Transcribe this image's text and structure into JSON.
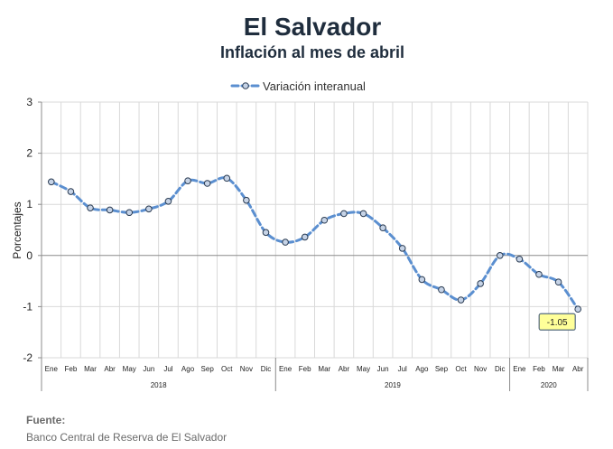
{
  "chart_data": {
    "type": "line",
    "title": "El Salvador",
    "subtitle": "Inflación al mes de abril",
    "ylabel": "Porcentajes",
    "xlabel": "",
    "ylim": [
      -2,
      3
    ],
    "yticks": [
      -2,
      -1,
      0,
      1,
      2,
      3
    ],
    "grid": true,
    "legend_position": "top-center",
    "categories": [
      "Ene",
      "Feb",
      "Mar",
      "Abr",
      "May",
      "Jun",
      "Jul",
      "Ago",
      "Sep",
      "Oct",
      "Nov",
      "Dic",
      "Ene",
      "Feb",
      "Mar",
      "Abr",
      "May",
      "Jun",
      "Jul",
      "Ago",
      "Sep",
      "Oct",
      "Nov",
      "Dic",
      "Ene",
      "Feb",
      "Mar",
      "Abr"
    ],
    "years": [
      {
        "label": "2018",
        "start": 0,
        "end": 11
      },
      {
        "label": "2019",
        "start": 12,
        "end": 23
      },
      {
        "label": "2020",
        "start": 24,
        "end": 27
      }
    ],
    "series": [
      {
        "name": "Variación interanual",
        "color": "#5b8fd0",
        "values": [
          1.44,
          1.25,
          0.93,
          0.89,
          0.84,
          0.91,
          1.06,
          1.46,
          1.41,
          1.51,
          1.08,
          0.45,
          0.26,
          0.36,
          0.69,
          0.82,
          0.82,
          0.54,
          0.14,
          -0.47,
          -0.67,
          -0.87,
          -0.55,
          0.0,
          -0.07,
          -0.37,
          -0.52,
          -1.05
        ]
      }
    ],
    "annotations": [
      {
        "label": "-1.05",
        "index": 27,
        "value": -1.05
      }
    ]
  },
  "source": {
    "label": "Fuente:",
    "text": "Banco Central de Reserva de El Salvador"
  }
}
